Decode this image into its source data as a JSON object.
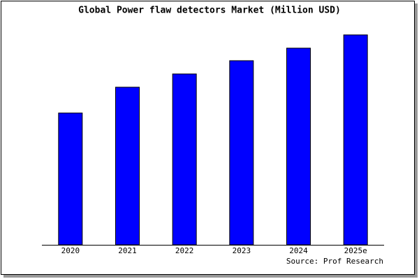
{
  "chart_data": {
    "type": "bar",
    "title": "Global Power flaw detectors Market (Million USD)",
    "categories": [
      "2020",
      "2021",
      "2022",
      "2023",
      "2024",
      "2025e"
    ],
    "values": [
      189,
      226,
      245,
      264,
      282,
      301
    ],
    "color": "#0000ff",
    "ylim": [
      0,
      302
    ],
    "source": "Source: Prof Research"
  }
}
